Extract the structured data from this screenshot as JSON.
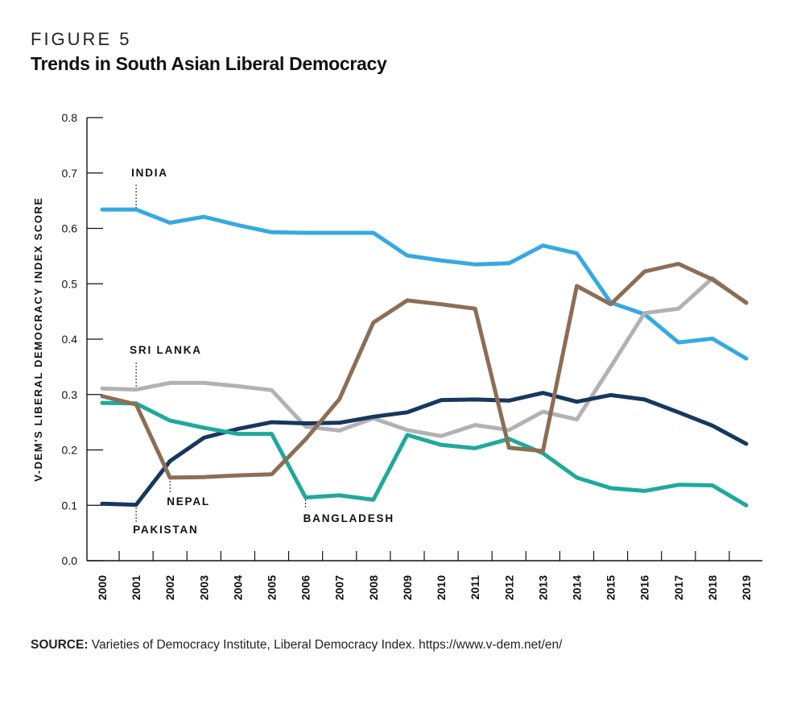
{
  "figure_label": "FIGURE 5",
  "title": "Trends in South Asian Liberal Democracy",
  "source": {
    "label": "SOURCE:",
    "text": "Varieties of Democracy Institute, Liberal Democracy Index. https://www.v-dem.net/en/"
  },
  "chart_data": {
    "type": "line",
    "ylabel": "V-DEM'S LIBERAL DEMOCRACY INDEX SCORE",
    "xlabel": "",
    "ylim": [
      0,
      0.8
    ],
    "yticks": [
      "0.0",
      "0.1",
      "0.2",
      "0.3",
      "0.4",
      "0.5",
      "0.6",
      "0.7",
      "0.8"
    ],
    "categories": [
      "2000",
      "2001",
      "2002",
      "2003",
      "2004",
      "2005",
      "2006",
      "2007",
      "2008",
      "2009",
      "2010",
      "2011",
      "2012",
      "2013",
      "2014",
      "2015",
      "2016",
      "2017",
      "2018",
      "2019"
    ],
    "grid": false,
    "series": [
      {
        "name": "INDIA",
        "color": "#36a9e1",
        "values": [
          0.634,
          0.634,
          0.61,
          0.621,
          0.606,
          0.593,
          0.592,
          0.592,
          0.592,
          0.551,
          0.542,
          0.535,
          0.537,
          0.569,
          0.555,
          0.466,
          0.445,
          0.394,
          0.401,
          0.365
        ]
      },
      {
        "name": "SRI LANKA",
        "color": "#b2b2b4",
        "values": [
          0.311,
          0.309,
          0.321,
          0.321,
          0.315,
          0.308,
          0.242,
          0.235,
          0.257,
          0.236,
          0.225,
          0.245,
          0.236,
          0.269,
          0.255,
          0.35,
          0.447,
          0.455,
          0.51,
          0.465
        ]
      },
      {
        "name": "PAKISTAN",
        "color": "#16385e",
        "values": [
          0.103,
          0.101,
          0.18,
          0.222,
          0.238,
          0.25,
          0.248,
          0.249,
          0.26,
          0.268,
          0.29,
          0.291,
          0.289,
          0.303,
          0.287,
          0.299,
          0.291,
          0.268,
          0.244,
          0.211
        ]
      },
      {
        "name": "BANGLADESH",
        "color": "#1fa99c",
        "values": [
          0.285,
          0.284,
          0.253,
          0.24,
          0.229,
          0.229,
          0.114,
          0.118,
          0.11,
          0.227,
          0.209,
          0.203,
          0.22,
          0.194,
          0.15,
          0.131,
          0.126,
          0.137,
          0.136,
          0.1
        ]
      },
      {
        "name": "NEPAL",
        "color": "#8c6e55",
        "values": [
          0.297,
          0.282,
          0.15,
          0.151,
          0.154,
          0.156,
          0.219,
          0.292,
          0.43,
          0.47,
          0.463,
          0.455,
          0.204,
          0.198,
          0.496,
          0.463,
          0.522,
          0.536,
          0.508,
          0.466
        ]
      }
    ],
    "annotations": [
      {
        "text": "INDIA",
        "series": "INDIA",
        "year": "2001"
      },
      {
        "text": "SRI LANKA",
        "series": "SRI LANKA",
        "year": "2001"
      },
      {
        "text": "NEPAL",
        "series": "NEPAL",
        "year": "2002"
      },
      {
        "text": "PAKISTAN",
        "series": "PAKISTAN",
        "year": "2001"
      },
      {
        "text": "BANGLADESH",
        "series": "BANGLADESH",
        "year": "2006"
      }
    ]
  }
}
